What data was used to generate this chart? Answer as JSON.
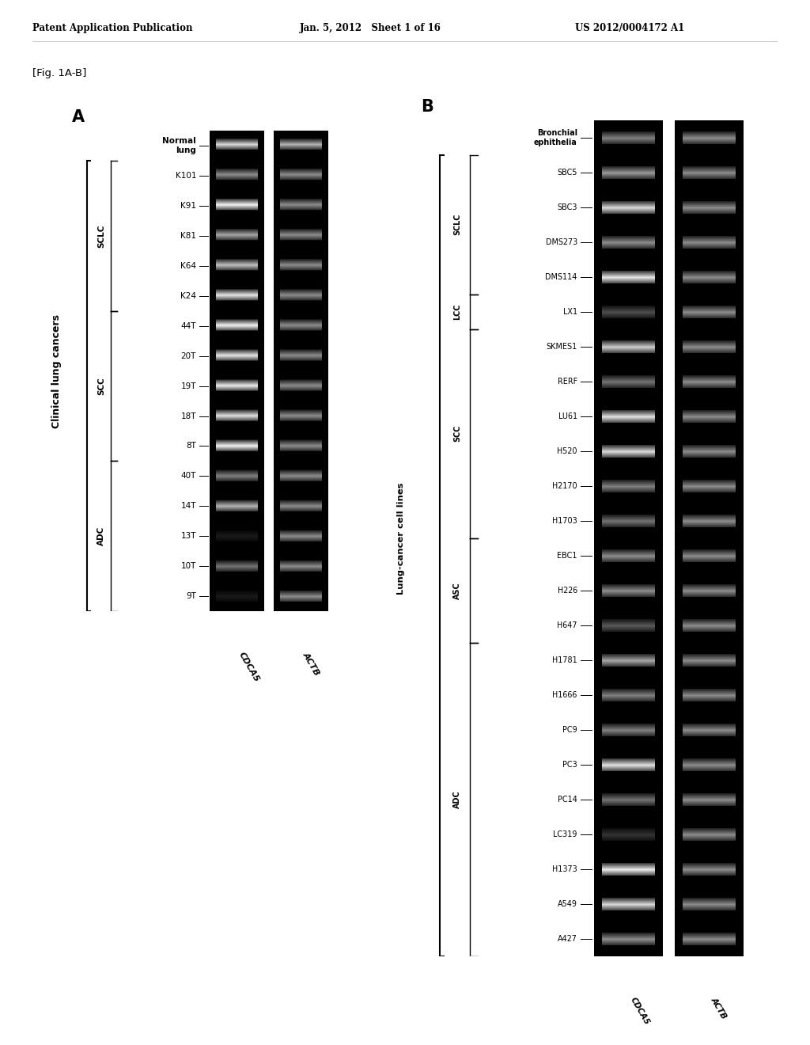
{
  "header_left": "Patent Application Publication",
  "header_mid": "Jan. 5, 2012   Sheet 1 of 16",
  "header_right": "US 2012/0004172 A1",
  "fig_label": "[Fig. 1A-B]",
  "panel_A": {
    "label": "A",
    "y_axis_label": "Clinical lung cancers",
    "groups": [
      {
        "name": "SCLC",
        "samples": [
          "K101",
          "K91",
          "K81",
          "K64",
          "K24"
        ]
      },
      {
        "name": "SCC",
        "samples": [
          "44T",
          "20T",
          "19T",
          "18T",
          "8T"
        ]
      },
      {
        "name": "ADC",
        "samples": [
          "40T",
          "14T",
          "13T",
          "10T",
          "9T"
        ]
      }
    ],
    "header_label": "Normal\nlung",
    "col_labels": [
      "CDCA5",
      "ACTB"
    ],
    "rows": [
      "Normal\nlung",
      "K101",
      "K91",
      "K81",
      "K64",
      "K24",
      "44T",
      "20T",
      "19T",
      "18T",
      "8T",
      "40T",
      "14T",
      "13T",
      "10T",
      "9T"
    ],
    "cdca5_intensities": [
      0.85,
      0.55,
      0.95,
      0.65,
      0.75,
      0.9,
      0.95,
      0.9,
      0.92,
      0.88,
      0.95,
      0.5,
      0.7,
      0.1,
      0.45,
      0.1
    ],
    "actb_intensities": [
      0.7,
      0.55,
      0.55,
      0.55,
      0.55,
      0.55,
      0.55,
      0.55,
      0.55,
      0.55,
      0.55,
      0.55,
      0.55,
      0.55,
      0.55,
      0.55
    ]
  },
  "panel_B": {
    "label": "B",
    "y_axis_label": "Lung-cancer cell lines",
    "groups": [
      {
        "name": "SCLC",
        "samples": [
          "SBC5",
          "SBC3",
          "DMS273",
          "DMS114"
        ]
      },
      {
        "name": "LCC",
        "samples": [
          "LX1"
        ]
      },
      {
        "name": "SCC",
        "samples": [
          "SKMES1",
          "RERF",
          "LU61",
          "H520",
          "H2170",
          "H1703"
        ]
      },
      {
        "name": "ASC",
        "samples": [
          "EBC1",
          "H226",
          "H647"
        ]
      },
      {
        "name": "ADC",
        "samples": [
          "H1781",
          "H1666",
          "PC9",
          "PC3",
          "PC14",
          "LC319",
          "H1373",
          "A549",
          "A427"
        ]
      }
    ],
    "header_label": "Bronchial\nephithelia",
    "col_labels": [
      "CDCA5",
      "ACTB"
    ],
    "rows": [
      "Bronchial\nephithelia",
      "SBC5",
      "SBC3",
      "DMS273",
      "DMS114",
      "LX1",
      "SKMES1",
      "RERF",
      "LU61",
      "H520",
      "H2170",
      "H1703",
      "EBC1",
      "H226",
      "H647",
      "H1781",
      "H1666",
      "PC9",
      "PC3",
      "PC14",
      "LC319",
      "H1373",
      "A549",
      "A427"
    ],
    "cdca5_intensities": [
      0.5,
      0.6,
      0.85,
      0.55,
      0.9,
      0.3,
      0.8,
      0.45,
      0.88,
      0.85,
      0.5,
      0.45,
      0.55,
      0.55,
      0.35,
      0.65,
      0.5,
      0.5,
      0.88,
      0.45,
      0.2,
      0.92,
      0.85,
      0.55
    ],
    "actb_intensities": [
      0.55,
      0.55,
      0.55,
      0.55,
      0.55,
      0.55,
      0.55,
      0.55,
      0.55,
      0.55,
      0.55,
      0.55,
      0.55,
      0.55,
      0.55,
      0.55,
      0.55,
      0.55,
      0.55,
      0.55,
      0.55,
      0.55,
      0.55,
      0.55
    ]
  },
  "background_color": "#ffffff",
  "gel_bg": "#0a0a0a"
}
